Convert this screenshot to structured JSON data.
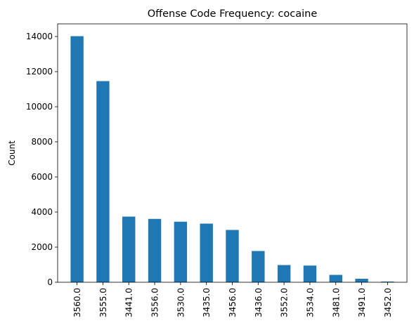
{
  "chart_data": {
    "type": "bar",
    "title": "Offense Code Frequency: cocaine",
    "xlabel": "",
    "ylabel": "Count",
    "categories": [
      "3560.0",
      "3555.0",
      "3441.0",
      "3556.0",
      "3530.0",
      "3435.0",
      "3456.0",
      "3436.0",
      "3552.0",
      "3534.0",
      "3481.0",
      "3491.0",
      "3452.0"
    ],
    "values": [
      14020,
      11460,
      3740,
      3610,
      3450,
      3340,
      2980,
      1780,
      980,
      950,
      420,
      200,
      40
    ],
    "yticks": [
      0,
      2000,
      4000,
      6000,
      8000,
      10000,
      12000,
      14000
    ],
    "ytick_labels": [
      "0",
      "2000",
      "4000",
      "6000",
      "8000",
      "10000",
      "12000",
      "14000"
    ],
    "ylim": [
      0,
      14721
    ],
    "bar_color": "#1f77b4",
    "grid": false,
    "legend": "none"
  }
}
